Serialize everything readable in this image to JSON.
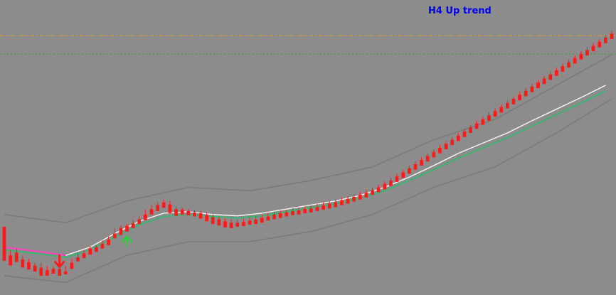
{
  "chart_data": {
    "type": "candlestick",
    "annotation": "H4 Up trend",
    "colors": {
      "background": "#8c8c8c",
      "bull_candle": "#0000ee",
      "bear_candle": "#ff1a1a",
      "fast_ma": "#ffffff",
      "slow_ma": "#3cb371",
      "ma_down_segment": "#ff40c0",
      "envelope": "#7a7a7a",
      "level_upper": "#e0a020",
      "level_lower": "#3a9a3a",
      "annotation": "#0000ee",
      "sell_arrow": "#ff1a1a",
      "buy_arrow": "#2ecc40"
    },
    "y_range": [
      0,
      415
    ],
    "levels": [
      {
        "name": "upper-level",
        "value": 373,
        "style": "dash-dot"
      },
      {
        "name": "lower-level",
        "value": 346,
        "style": "dotted"
      }
    ],
    "candles": [
      [
        0,
        92,
        85,
        50,
        42
      ],
      [
        1,
        50,
        57,
        40,
        35
      ],
      [
        2,
        54,
        60,
        44,
        40
      ],
      [
        3,
        44,
        50,
        36,
        32
      ],
      [
        4,
        40,
        45,
        33,
        29
      ],
      [
        5,
        35,
        39,
        30,
        26
      ],
      [
        6,
        32,
        39,
        28,
        20
      ],
      [
        7,
        28,
        34,
        25,
        20
      ],
      [
        8,
        30,
        34,
        26,
        23
      ],
      [
        9,
        30,
        33,
        25,
        20
      ],
      [
        10,
        26,
        34,
        22,
        22
      ],
      [
        11,
        39,
        45,
        33,
        30
      ],
      [
        12,
        47,
        54,
        44,
        41
      ],
      [
        13,
        53,
        57,
        49,
        46
      ],
      [
        14,
        60,
        63,
        54,
        51
      ],
      [
        15,
        62,
        65,
        58,
        55
      ],
      [
        16,
        67,
        72,
        63,
        60
      ],
      [
        17,
        73,
        78,
        69,
        65
      ],
      [
        18,
        82,
        90,
        78,
        75
      ],
      [
        19,
        90,
        94,
        82,
        80
      ],
      [
        20,
        93,
        96,
        88,
        85
      ],
      [
        21,
        97,
        102,
        92,
        90
      ],
      [
        22,
        103,
        108,
        99,
        96
      ],
      [
        23,
        110,
        117,
        105,
        102
      ],
      [
        24,
        118,
        124,
        113,
        110
      ],
      [
        25,
        124,
        128,
        118,
        115
      ],
      [
        26,
        128,
        132,
        122,
        120
      ],
      [
        27,
        125,
        130,
        117,
        112
      ],
      [
        28,
        118,
        122,
        112,
        108
      ],
      [
        29,
        117,
        120,
        113,
        110
      ],
      [
        30,
        115,
        118,
        112,
        109
      ],
      [
        31,
        113,
        116,
        110,
        107
      ],
      [
        32,
        112,
        115,
        108,
        104
      ],
      [
        33,
        109,
        113,
        105,
        100
      ],
      [
        34,
        106,
        110,
        101,
        96
      ],
      [
        35,
        103,
        107,
        98,
        94
      ],
      [
        36,
        100,
        104,
        95,
        91
      ],
      [
        37,
        98,
        103,
        94,
        90
      ],
      [
        38,
        98,
        102,
        95,
        92
      ],
      [
        39,
        99,
        104,
        96,
        93
      ],
      [
        40,
        101,
        106,
        98,
        95
      ],
      [
        41,
        103,
        107,
        99,
        96
      ],
      [
        42,
        105,
        110,
        101,
        98
      ],
      [
        43,
        107,
        112,
        104,
        101
      ],
      [
        44,
        110,
        114,
        106,
        103
      ],
      [
        45,
        112,
        116,
        108,
        105
      ],
      [
        46,
        113,
        117,
        110,
        107
      ],
      [
        47,
        115,
        119,
        112,
        109
      ],
      [
        48,
        116,
        120,
        113,
        110
      ],
      [
        49,
        118,
        122,
        115,
        112
      ],
      [
        50,
        119,
        123,
        116,
        113
      ],
      [
        51,
        121,
        126,
        118,
        115
      ],
      [
        52,
        123,
        128,
        120,
        117
      ],
      [
        53,
        126,
        130,
        122,
        119
      ],
      [
        54,
        128,
        132,
        124,
        121
      ],
      [
        55,
        131,
        135,
        127,
        124
      ],
      [
        56,
        133,
        137,
        129,
        126
      ],
      [
        57,
        136,
        140,
        132,
        129
      ],
      [
        58,
        139,
        143,
        135,
        132
      ],
      [
        59,
        142,
        146,
        138,
        135
      ],
      [
        60,
        146,
        150,
        142,
        139
      ],
      [
        61,
        150,
        154,
        146,
        143
      ],
      [
        62,
        155,
        159,
        150,
        147
      ],
      [
        63,
        160,
        164,
        155,
        152
      ],
      [
        64,
        166,
        170,
        161,
        158
      ],
      [
        65,
        172,
        176,
        167,
        164
      ],
      [
        66,
        178,
        182,
        173,
        170
      ],
      [
        67,
        184,
        188,
        179,
        176
      ],
      [
        68,
        190,
        194,
        185,
        182
      ],
      [
        69,
        196,
        200,
        191,
        188
      ],
      [
        70,
        202,
        206,
        197,
        194
      ],
      [
        71,
        208,
        212,
        203,
        200
      ],
      [
        72,
        214,
        218,
        209,
        206
      ],
      [
        73,
        220,
        224,
        215,
        212
      ],
      [
        74,
        226,
        230,
        221,
        218
      ],
      [
        75,
        232,
        236,
        227,
        224
      ],
      [
        76,
        238,
        242,
        233,
        230
      ],
      [
        77,
        244,
        248,
        239,
        236
      ],
      [
        78,
        250,
        254,
        245,
        242
      ],
      [
        79,
        256,
        260,
        251,
        248
      ],
      [
        80,
        262,
        266,
        257,
        254
      ],
      [
        81,
        268,
        272,
        263,
        260
      ],
      [
        82,
        274,
        278,
        269,
        266
      ],
      [
        83,
        280,
        284,
        275,
        272
      ],
      [
        84,
        286,
        290,
        281,
        278
      ],
      [
        85,
        292,
        296,
        287,
        284
      ],
      [
        86,
        298,
        302,
        293,
        290
      ],
      [
        87,
        304,
        308,
        299,
        296
      ],
      [
        88,
        310,
        314,
        305,
        302
      ],
      [
        89,
        316,
        320,
        311,
        308
      ],
      [
        90,
        322,
        326,
        317,
        314
      ],
      [
        91,
        328,
        332,
        323,
        320
      ],
      [
        92,
        334,
        338,
        329,
        326
      ],
      [
        93,
        340,
        344,
        335,
        332
      ],
      [
        94,
        346,
        350,
        341,
        338
      ],
      [
        95,
        352,
        356,
        347,
        344
      ],
      [
        96,
        358,
        362,
        353,
        350
      ],
      [
        97,
        364,
        368,
        359,
        356
      ],
      [
        98,
        370,
        374,
        365,
        362
      ],
      [
        99,
        376,
        380,
        371,
        368
      ]
    ],
    "fast_ma": [
      [
        0,
        62
      ],
      [
        6,
        55
      ],
      [
        10,
        50
      ],
      [
        14,
        62
      ],
      [
        18,
        82
      ],
      [
        22,
        100
      ],
      [
        26,
        112
      ],
      [
        30,
        114
      ],
      [
        34,
        110
      ],
      [
        38,
        108
      ],
      [
        42,
        112
      ],
      [
        46,
        118
      ],
      [
        50,
        124
      ],
      [
        54,
        130
      ],
      [
        58,
        138
      ],
      [
        62,
        150
      ],
      [
        66,
        165
      ],
      [
        70,
        182
      ],
      [
        74,
        200
      ],
      [
        78,
        215
      ],
      [
        82,
        230
      ],
      [
        86,
        248
      ],
      [
        90,
        265
      ],
      [
        94,
        282
      ],
      [
        98,
        300
      ]
    ],
    "slow_ma": [
      [
        0,
        58
      ],
      [
        6,
        52
      ],
      [
        10,
        47
      ],
      [
        14,
        58
      ],
      [
        18,
        77
      ],
      [
        22,
        95
      ],
      [
        26,
        107
      ],
      [
        30,
        110
      ],
      [
        34,
        107
      ],
      [
        38,
        105
      ],
      [
        42,
        108
      ],
      [
        46,
        114
      ],
      [
        50,
        120
      ],
      [
        54,
        126
      ],
      [
        58,
        134
      ],
      [
        62,
        145
      ],
      [
        66,
        160
      ],
      [
        70,
        176
      ],
      [
        74,
        193
      ],
      [
        78,
        208
      ],
      [
        82,
        223
      ],
      [
        86,
        240
      ],
      [
        90,
        257
      ],
      [
        94,
        274
      ],
      [
        98,
        292
      ]
    ],
    "env_upper": [
      [
        0,
        110
      ],
      [
        10,
        98
      ],
      [
        20,
        130
      ],
      [
        30,
        150
      ],
      [
        40,
        145
      ],
      [
        50,
        160
      ],
      [
        60,
        180
      ],
      [
        70,
        220
      ],
      [
        80,
        250
      ],
      [
        90,
        300
      ],
      [
        99,
        345
      ]
    ],
    "env_lower": [
      [
        0,
        20
      ],
      [
        10,
        10
      ],
      [
        20,
        50
      ],
      [
        30,
        70
      ],
      [
        40,
        70
      ],
      [
        50,
        85
      ],
      [
        60,
        110
      ],
      [
        70,
        150
      ],
      [
        80,
        180
      ],
      [
        90,
        230
      ],
      [
        99,
        280
      ]
    ],
    "signals": [
      {
        "type": "sell",
        "index": 9
      },
      {
        "type": "buy",
        "index": 20
      }
    ]
  }
}
